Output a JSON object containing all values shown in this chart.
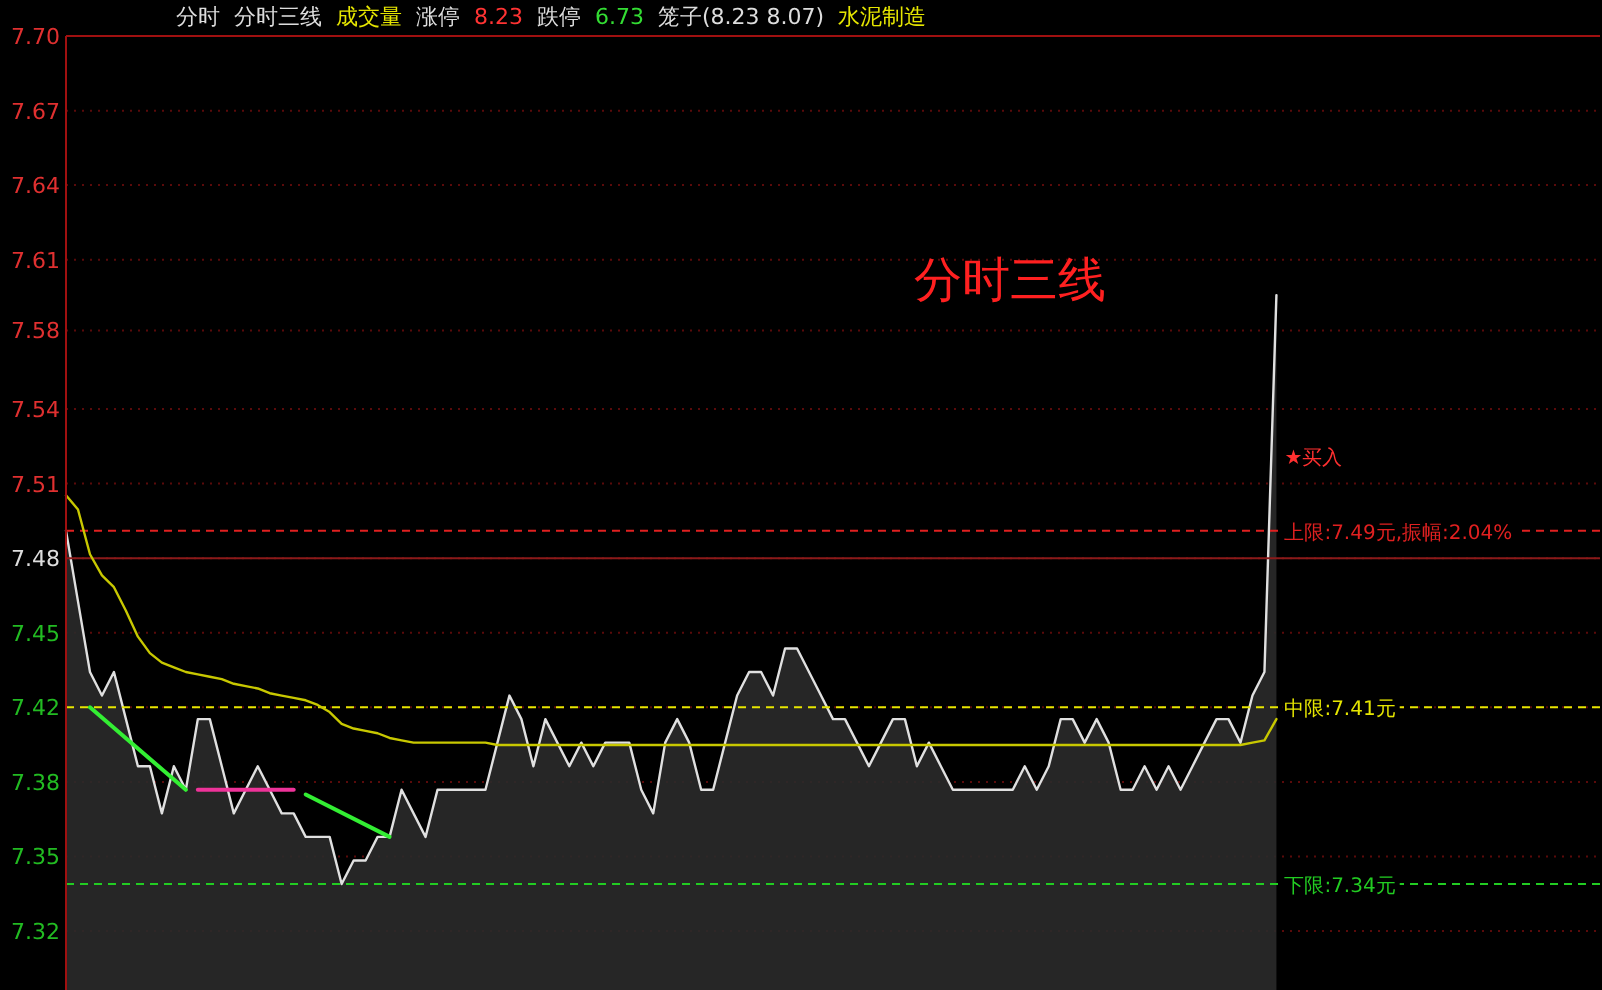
{
  "chart_data": {
    "type": "area",
    "title": "分时三线",
    "annotations": [
      "分时",
      "分时三线",
      "成交量",
      "涨停",
      "8.23",
      "跌停",
      "6.73",
      "笼子(8.23 8.07)",
      "水泥制造",
      "★买入"
    ],
    "categories": [
      null,
      null,
      null,
      null,
      null,
      null,
      null,
      null,
      null,
      null,
      null,
      null,
      null,
      null,
      null,
      null,
      null,
      null,
      null,
      null,
      null,
      null,
      null,
      null,
      null,
      null,
      null,
      null,
      null,
      null,
      null,
      null,
      null,
      null,
      null,
      null,
      null,
      null,
      null,
      null,
      null,
      null,
      null,
      null,
      null,
      null,
      null,
      null,
      null,
      null,
      null,
      null,
      null,
      null,
      null,
      null,
      null,
      null,
      null,
      null,
      null,
      null,
      null,
      null,
      null,
      null,
      null,
      null,
      null,
      null,
      null,
      null,
      null,
      null,
      null,
      null,
      null,
      null,
      null,
      null,
      null,
      null,
      null,
      null,
      null,
      null,
      null,
      null,
      null,
      null,
      null,
      null,
      null,
      null,
      null,
      null,
      null,
      null,
      null,
      null,
      null,
      null,
      null,
      null,
      null,
      null,
      null,
      null,
      null,
      null,
      null,
      null,
      null,
      null,
      null,
      null,
      null,
      null,
      null,
      null,
      null,
      null,
      null,
      null,
      null,
      null,
      null,
      null
    ],
    "series": [
      {
        "type": "area",
        "color": "#e0e0e0",
        "values": [
          7.49,
          7.46,
          7.43,
          7.42,
          7.43,
          7.41,
          7.39,
          7.39,
          7.37,
          7.39,
          7.38,
          7.41,
          7.41,
          7.39,
          7.37,
          7.38,
          7.39,
          7.38,
          7.37,
          7.37,
          7.36,
          7.36,
          7.36,
          7.34,
          7.35,
          7.35,
          7.36,
          7.36,
          7.38,
          7.37,
          7.36,
          7.38,
          7.38,
          7.38,
          7.38,
          7.38,
          7.4,
          7.42,
          7.41,
          7.39,
          7.41,
          7.4,
          7.39,
          7.4,
          7.39,
          7.4,
          7.4,
          7.4,
          7.38,
          7.37,
          7.4,
          7.41,
          7.4,
          7.38,
          7.38,
          7.4,
          7.42,
          7.43,
          7.43,
          7.42,
          7.44,
          7.44,
          7.43,
          7.42,
          7.41,
          7.41,
          7.4,
          7.39,
          7.4,
          7.41,
          7.41,
          7.39,
          7.4,
          7.39,
          7.38,
          7.38,
          7.38,
          7.38,
          7.38,
          7.38,
          7.39,
          7.38,
          7.39,
          7.41,
          7.41,
          7.4,
          7.41,
          7.4,
          7.38,
          7.38,
          7.39,
          7.38,
          7.39,
          7.38,
          7.39,
          7.4,
          7.41,
          7.41,
          7.4,
          7.42,
          7.43,
          7.59,
          null,
          null,
          null,
          null,
          null,
          null,
          null,
          null,
          null,
          null,
          null,
          null,
          null,
          null,
          null,
          null,
          null,
          null,
          null,
          null,
          null,
          null,
          null,
          null,
          null,
          null
        ]
      },
      {
        "type": "line",
        "color": "#c8c800",
        "values": [
          7.505,
          7.499,
          7.48,
          7.471,
          7.466,
          7.456,
          7.445,
          7.438,
          7.434,
          7.432,
          7.43,
          7.429,
          7.428,
          7.427,
          7.425,
          7.424,
          7.423,
          7.421,
          7.42,
          7.419,
          7.418,
          7.416,
          7.413,
          7.408,
          7.406,
          7.405,
          7.404,
          7.402,
          7.401,
          7.4,
          7.4,
          7.4,
          7.4,
          7.4,
          7.4,
          7.4,
          7.399,
          7.399,
          7.399,
          7.399,
          7.399,
          7.399,
          7.399,
          7.399,
          7.399,
          7.399,
          7.399,
          7.399,
          7.399,
          7.399,
          7.399,
          7.399,
          7.399,
          7.399,
          7.399,
          7.399,
          7.399,
          7.399,
          7.399,
          7.399,
          7.399,
          7.399,
          7.399,
          7.399,
          7.399,
          7.399,
          7.399,
          7.399,
          7.399,
          7.399,
          7.399,
          7.399,
          7.399,
          7.399,
          7.399,
          7.399,
          7.399,
          7.399,
          7.399,
          7.399,
          7.399,
          7.399,
          7.399,
          7.399,
          7.399,
          7.399,
          7.399,
          7.399,
          7.399,
          7.399,
          7.399,
          7.399,
          7.399,
          7.399,
          7.399,
          7.399,
          7.399,
          7.399,
          7.399,
          7.4,
          7.401,
          7.41,
          null,
          null,
          null,
          null,
          null,
          null,
          null,
          null,
          null,
          null,
          null,
          null,
          null,
          null,
          null,
          null,
          null,
          null,
          null,
          null,
          null,
          null,
          null,
          null,
          null,
          null
        ]
      },
      {
        "type": "line",
        "color": "#33ee33",
        "values": [
          null,
          null,
          7.415,
          null,
          null,
          null,
          null,
          null,
          null,
          null,
          7.38,
          null,
          null,
          null,
          null,
          null,
          null,
          null,
          null,
          null,
          null,
          null,
          null,
          null,
          null,
          null,
          null,
          null,
          null,
          null,
          null,
          null,
          null,
          null,
          null,
          null,
          null,
          null,
          null,
          null,
          null,
          null,
          null,
          null,
          null,
          null,
          null,
          null,
          null,
          null,
          null,
          null,
          null,
          null,
          null,
          null,
          null,
          null,
          null,
          null,
          null,
          null,
          null,
          null,
          null,
          null,
          null,
          null,
          null,
          null,
          null,
          null,
          null,
          null,
          null,
          null,
          null,
          null,
          null,
          null,
          null,
          null,
          null,
          null,
          null,
          null,
          null,
          null,
          null,
          null,
          null,
          null,
          null,
          null,
          null,
          null,
          null,
          null,
          null,
          null,
          null,
          null,
          null,
          null,
          null,
          null,
          null,
          null,
          null,
          null,
          null,
          null,
          null,
          null,
          null,
          null,
          null,
          null,
          null,
          null,
          null,
          null,
          null,
          null,
          null,
          null,
          null,
          null
        ]
      },
      {
        "type": "line",
        "color": "#ee3399",
        "values": [
          null,
          null,
          null,
          null,
          null,
          null,
          null,
          null,
          null,
          null,
          null,
          7.38,
          null,
          null,
          null,
          null,
          null,
          null,
          null,
          7.38,
          null,
          null,
          null,
          null,
          null,
          null,
          null,
          null,
          null,
          null,
          null,
          null,
          null,
          null,
          null,
          null,
          null,
          null,
          null,
          null,
          null,
          null,
          null,
          null,
          null,
          null,
          null,
          null,
          null,
          null,
          null,
          null,
          null,
          null,
          null,
          null,
          null,
          null,
          null,
          null,
          null,
          null,
          null,
          null,
          null,
          null,
          null,
          null,
          null,
          null,
          null,
          null,
          null,
          null,
          null,
          null,
          null,
          null,
          null,
          null,
          null,
          null,
          null,
          null,
          null,
          null,
          null,
          null,
          null,
          null,
          null,
          null,
          null,
          null,
          null,
          null,
          null,
          null,
          null,
          null,
          null,
          null,
          null,
          null,
          null,
          null,
          null,
          null,
          null,
          null,
          null,
          null,
          null,
          null,
          null,
          null,
          null,
          null,
          null,
          null,
          null,
          null,
          null,
          null,
          null,
          null,
          null,
          null
        ]
      },
      {
        "type": "line",
        "color": "#33ee33",
        "values": [
          null,
          null,
          null,
          null,
          null,
          null,
          null,
          null,
          null,
          null,
          null,
          null,
          null,
          null,
          null,
          null,
          null,
          null,
          null,
          null,
          7.378,
          null,
          null,
          null,
          null,
          null,
          null,
          7.36,
          null,
          null,
          null,
          null,
          null,
          null,
          null,
          null,
          null,
          null,
          null,
          null,
          null,
          null,
          null,
          null,
          null,
          null,
          null,
          null,
          null,
          null,
          null,
          null,
          null,
          null,
          null,
          null,
          null,
          null,
          null,
          null,
          null,
          null,
          null,
          null,
          null,
          null,
          null,
          null,
          null,
          null,
          null,
          null,
          null,
          null,
          null,
          null,
          null,
          null,
          null,
          null,
          null,
          null,
          null,
          null,
          null,
          null,
          null,
          null,
          null,
          null,
          null,
          null,
          null,
          null,
          null,
          null,
          null,
          null,
          null,
          null,
          null,
          null,
          null,
          null,
          null,
          null,
          null,
          null,
          null,
          null,
          null,
          null,
          null,
          null,
          null,
          null,
          null,
          null,
          null,
          null,
          null,
          null,
          null,
          null,
          null,
          null,
          null,
          null
        ]
      }
    ],
    "ylim": [
      7.295,
      7.7
    ],
    "yticks": [
      {
        "value": 7.7,
        "label": "7.70"
      },
      {
        "value": 7.6683,
        "label": "7.67"
      },
      {
        "value": 7.6367,
        "label": "7.64"
      },
      {
        "value": 7.605,
        "label": "7.61"
      },
      {
        "value": 7.575,
        "label": "7.58"
      },
      {
        "value": 7.5417,
        "label": "7.54"
      },
      {
        "value": 7.51,
        "label": "7.51"
      },
      {
        "value": 7.4783,
        "label": "7.48"
      },
      {
        "value": 7.4467,
        "label": "7.45"
      },
      {
        "value": 7.415,
        "label": "7.42"
      },
      {
        "value": 7.3833,
        "label": "7.38"
      },
      {
        "value": 7.3517,
        "label": "7.35"
      },
      {
        "value": 7.32,
        "label": "7.32"
      }
    ],
    "ref_lines": [
      {
        "axis": "y",
        "value": 7.4783,
        "color": "#8b1a1a",
        "line_style": "solid"
      },
      {
        "axis": "y",
        "value": 7.49,
        "label": "上限:7.49元,振幅:2.04%",
        "color": "#e02020",
        "line_style": "dashed"
      },
      {
        "axis": "y",
        "value": 7.415,
        "label": "中限:7.41元",
        "color": "#e6e600",
        "line_style": "dashed"
      },
      {
        "axis": "y",
        "value": 7.34,
        "label": "下限:7.34元",
        "color": "#22cc22",
        "line_style": "dashed"
      }
    ],
    "grid": "y",
    "tick_labels": "y"
  }
}
